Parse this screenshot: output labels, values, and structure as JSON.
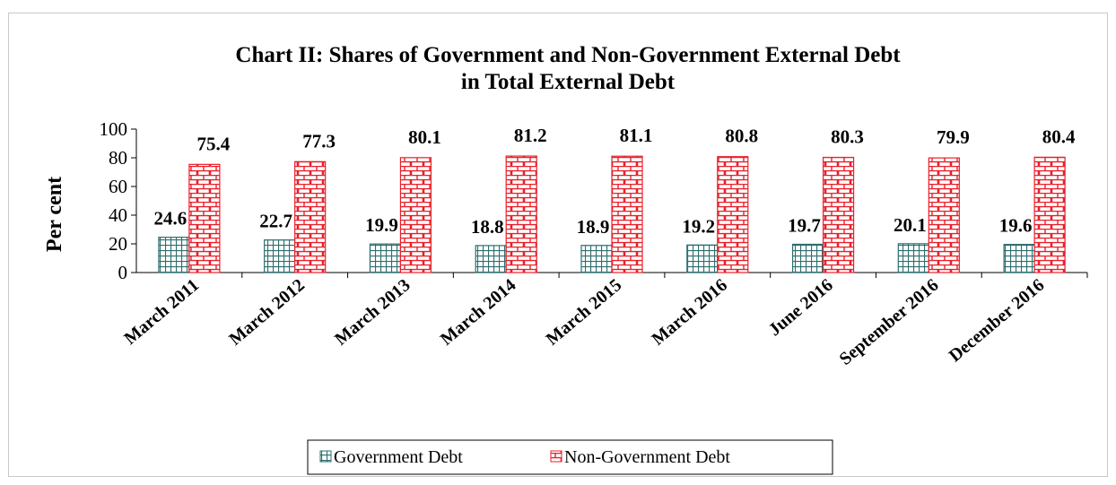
{
  "chart_data": {
    "type": "bar",
    "title": "Chart II: Shares of Government and Non-Government External Debt",
    "title_line2": "in Total External Debt",
    "xlabel": "",
    "ylabel": "Per cent",
    "ylim": [
      0,
      100
    ],
    "yticks": [
      "0",
      "20",
      "40",
      "60",
      "80",
      "100"
    ],
    "grid": false,
    "legend_position": "bottom",
    "categories": [
      "March 2011",
      "March 2012",
      "March 2013",
      "March 2014",
      "March 2015",
      "March 2016",
      "June 2016",
      "September 2016",
      "December 2016"
    ],
    "series": [
      {
        "name": "Government Debt",
        "values": [
          24.6,
          22.7,
          19.9,
          18.8,
          18.9,
          19.2,
          19.7,
          20.1,
          19.6
        ],
        "labels": [
          "24.6",
          "22.7",
          "19.9",
          "18.8",
          "18.9",
          "19.2",
          "19.7",
          "20.1",
          "19.6"
        ],
        "color": "#2e6e6e",
        "pattern": "grid"
      },
      {
        "name": "Non-Government Debt",
        "values": [
          75.4,
          77.3,
          80.1,
          81.2,
          81.1,
          80.8,
          80.3,
          79.9,
          80.4
        ],
        "labels": [
          "75.4",
          "77.3",
          "80.1",
          "81.2",
          "81.1",
          "80.8",
          "80.3",
          "79.9",
          "80.4"
        ],
        "color": "#e8202a",
        "pattern": "brick"
      }
    ]
  }
}
